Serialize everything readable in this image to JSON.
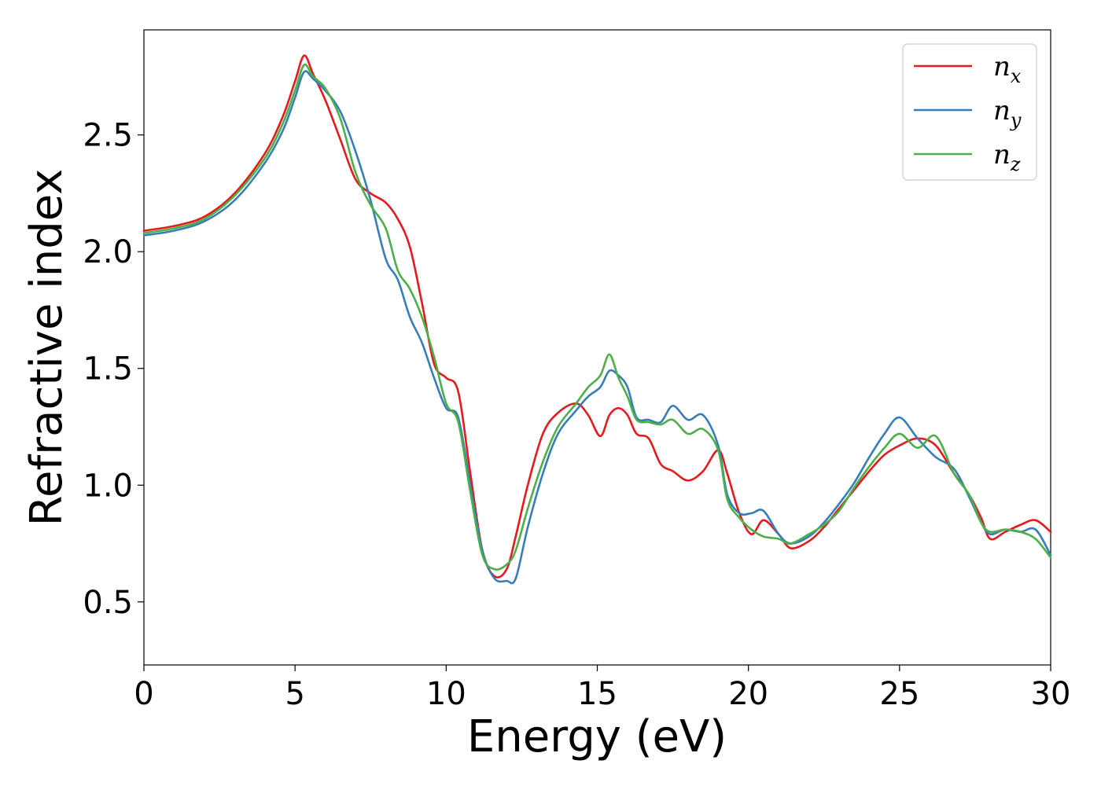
{
  "chart_data": {
    "type": "line",
    "title": "",
    "xlabel": "Energy (eV)",
    "ylabel": "Refractive index",
    "xlim": [
      0,
      30
    ],
    "ylim": [
      0.23,
      2.95
    ],
    "xticks": [
      0,
      5,
      10,
      15,
      20,
      25,
      30
    ],
    "yticks": [
      0.5,
      1.0,
      1.5,
      2.0,
      2.5
    ],
    "xtick_labels": [
      "0",
      "5",
      "10",
      "15",
      "20",
      "25",
      "30"
    ],
    "ytick_labels": [
      "0.5",
      "1.0",
      "1.5",
      "2.0",
      "2.5"
    ],
    "grid": false,
    "legend_position": "top-right",
    "series": [
      {
        "name": "n",
        "subscript": "x",
        "color": "#e41a1c",
        "x": [
          0,
          1,
          2,
          3,
          4,
          4.6,
          5,
          5.3,
          5.6,
          6,
          6.5,
          7,
          7.5,
          8,
          8.4,
          8.8,
          9.2,
          9.6,
          10,
          10.4,
          10.8,
          11.2,
          11.6,
          12,
          12.3,
          12.7,
          13.2,
          13.7,
          14.3,
          14.7,
          15.1,
          15.4,
          15.7,
          16,
          16.3,
          16.7,
          17.1,
          17.5,
          18,
          18.5,
          19,
          19.3,
          19.7,
          20.1,
          20.5,
          21,
          21.4,
          22,
          22.5,
          23,
          23.5,
          24,
          24.5,
          25,
          25.6,
          26.2,
          26.8,
          27.3,
          27.7,
          28,
          28.5,
          29,
          29.5,
          30
        ],
        "y": [
          2.09,
          2.11,
          2.15,
          2.25,
          2.42,
          2.58,
          2.73,
          2.84,
          2.76,
          2.65,
          2.48,
          2.31,
          2.25,
          2.21,
          2.14,
          2.02,
          1.78,
          1.52,
          1.46,
          1.4,
          1.05,
          0.72,
          0.61,
          0.64,
          0.78,
          1.0,
          1.22,
          1.31,
          1.35,
          1.3,
          1.21,
          1.3,
          1.33,
          1.3,
          1.22,
          1.2,
          1.09,
          1.06,
          1.02,
          1.06,
          1.15,
          1.05,
          0.88,
          0.79,
          0.85,
          0.79,
          0.73,
          0.76,
          0.82,
          0.9,
          0.98,
          1.06,
          1.13,
          1.17,
          1.2,
          1.17,
          1.05,
          0.96,
          0.86,
          0.77,
          0.8,
          0.83,
          0.85,
          0.8
        ]
      },
      {
        "name": "n",
        "subscript": "y",
        "color": "#377eb8",
        "x": [
          0,
          1,
          2,
          3,
          4,
          4.6,
          5,
          5.3,
          5.6,
          6,
          6.5,
          7,
          7.5,
          8,
          8.4,
          8.8,
          9.2,
          9.6,
          10,
          10.4,
          10.8,
          11.2,
          11.6,
          12,
          12.3,
          12.7,
          13.2,
          13.7,
          14.3,
          14.7,
          15.1,
          15.4,
          15.7,
          16,
          16.3,
          16.7,
          17.1,
          17.5,
          18,
          18.5,
          19,
          19.3,
          19.7,
          20.1,
          20.5,
          21,
          21.4,
          22,
          22.5,
          23,
          23.5,
          24,
          24.5,
          25,
          25.6,
          26.2,
          26.8,
          27.3,
          27.7,
          28,
          28.5,
          29,
          29.5,
          30
        ],
        "y": [
          2.07,
          2.09,
          2.13,
          2.22,
          2.38,
          2.52,
          2.66,
          2.77,
          2.74,
          2.69,
          2.6,
          2.43,
          2.22,
          1.97,
          1.88,
          1.72,
          1.61,
          1.46,
          1.33,
          1.29,
          1.0,
          0.72,
          0.6,
          0.59,
          0.6,
          0.82,
          1.05,
          1.22,
          1.32,
          1.38,
          1.42,
          1.49,
          1.47,
          1.42,
          1.29,
          1.28,
          1.27,
          1.34,
          1.28,
          1.3,
          1.17,
          0.96,
          0.88,
          0.88,
          0.89,
          0.79,
          0.75,
          0.78,
          0.84,
          0.92,
          1.01,
          1.12,
          1.22,
          1.29,
          1.2,
          1.12,
          1.07,
          0.95,
          0.84,
          0.79,
          0.81,
          0.8,
          0.81,
          0.7
        ]
      },
      {
        "name": "n",
        "subscript": "z",
        "color": "#4daf4a",
        "x": [
          0,
          1,
          2,
          3,
          4,
          4.6,
          5,
          5.3,
          5.6,
          6,
          6.5,
          7,
          7.5,
          8,
          8.4,
          8.8,
          9.2,
          9.6,
          10,
          10.4,
          10.8,
          11.2,
          11.6,
          12,
          12.3,
          12.7,
          13.2,
          13.7,
          14.3,
          14.7,
          15.1,
          15.4,
          15.7,
          16,
          16.3,
          16.7,
          17.1,
          17.5,
          18,
          18.5,
          19,
          19.3,
          19.7,
          20.1,
          20.5,
          21,
          21.4,
          22,
          22.5,
          23,
          23.5,
          24,
          24.5,
          25,
          25.6,
          26.2,
          26.8,
          27.3,
          27.7,
          28,
          28.5,
          29,
          29.5,
          30
        ],
        "y": [
          2.08,
          2.1,
          2.14,
          2.24,
          2.4,
          2.55,
          2.69,
          2.8,
          2.75,
          2.7,
          2.57,
          2.34,
          2.2,
          2.1,
          1.92,
          1.84,
          1.72,
          1.55,
          1.35,
          1.27,
          0.97,
          0.7,
          0.64,
          0.66,
          0.72,
          0.9,
          1.1,
          1.25,
          1.35,
          1.42,
          1.47,
          1.56,
          1.46,
          1.38,
          1.28,
          1.27,
          1.26,
          1.28,
          1.22,
          1.24,
          1.15,
          0.94,
          0.86,
          0.81,
          0.78,
          0.77,
          0.75,
          0.79,
          0.83,
          0.89,
          0.99,
          1.08,
          1.16,
          1.22,
          1.16,
          1.21,
          1.05,
          0.96,
          0.84,
          0.8,
          0.81,
          0.8,
          0.77,
          0.69
        ]
      }
    ]
  }
}
